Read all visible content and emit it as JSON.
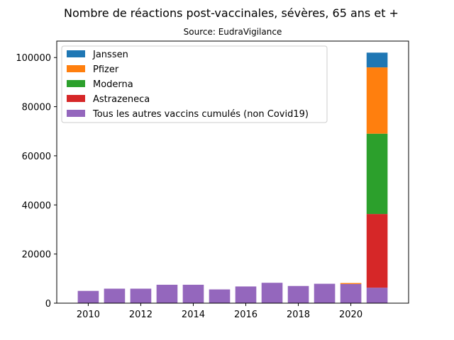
{
  "chart_data": {
    "type": "bar",
    "stacked": true,
    "title": "Nombre de réactions post-vaccinales, sévères, 65 ans et +",
    "subtitle": "Source: EudraVigilance",
    "xlabel": "",
    "ylabel": "",
    "x": [
      2010,
      2011,
      2012,
      2013,
      2014,
      2015,
      2016,
      2017,
      2018,
      2019,
      2020,
      2021
    ],
    "xticks": [
      2010,
      2012,
      2014,
      2016,
      2018,
      2020
    ],
    "yticks": [
      0,
      20000,
      40000,
      60000,
      80000,
      100000
    ],
    "xlim": [
      2008.8,
      2022.2
    ],
    "ylim": [
      0,
      106700
    ],
    "grid": false,
    "legend_position": "top-left",
    "series": [
      {
        "name": "Tous les autres vaccins cumulés (non Covid19)",
        "color": "#9467bd",
        "values": [
          5000,
          5900,
          5900,
          7500,
          7500,
          5600,
          6800,
          8300,
          7000,
          7900,
          7800,
          6300
        ]
      },
      {
        "name": "Astrazeneca",
        "color": "#d62728",
        "values": [
          0,
          0,
          0,
          0,
          0,
          0,
          0,
          0,
          0,
          0,
          0,
          30000
        ]
      },
      {
        "name": "Moderna",
        "color": "#2ca02c",
        "values": [
          0,
          0,
          0,
          0,
          0,
          0,
          0,
          0,
          0,
          0,
          0,
          32700
        ]
      },
      {
        "name": "Pfizer",
        "color": "#ff7f0e",
        "values": [
          0,
          0,
          0,
          0,
          0,
          0,
          0,
          0,
          0,
          0,
          400,
          27000
        ]
      },
      {
        "name": "Janssen",
        "color": "#1f77b4",
        "values": [
          0,
          0,
          0,
          0,
          0,
          0,
          0,
          0,
          0,
          0,
          0,
          6000
        ]
      }
    ],
    "legend_order": [
      "Janssen",
      "Pfizer",
      "Moderna",
      "Astrazeneca",
      "Tous les autres vaccins cumulés (non Covid19)"
    ]
  }
}
